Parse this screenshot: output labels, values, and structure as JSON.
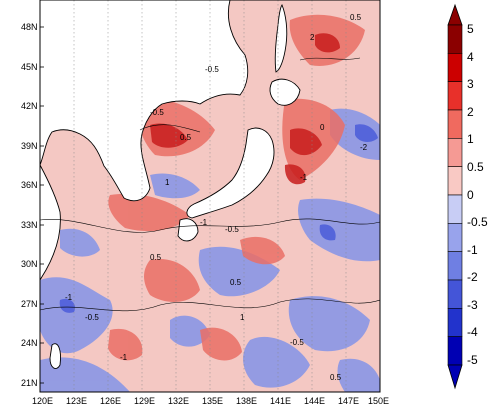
{
  "map": {
    "y_ticks": [
      "48N",
      "45N",
      "42N",
      "39N",
      "36N",
      "33N",
      "30N",
      "27N",
      "24N",
      "21N"
    ],
    "x_ticks": [
      "120E",
      "123E",
      "126E",
      "129E",
      "132E",
      "135E",
      "138E",
      "141E",
      "144E",
      "147E",
      "150E"
    ],
    "lon_range": [
      120,
      150
    ],
    "lat_range": [
      20,
      50
    ],
    "contour_labels": [
      "-0.5",
      "0.5",
      "1",
      "-1",
      "2",
      "-2",
      "0"
    ]
  },
  "colorbar": {
    "levels": [
      "5",
      "4",
      "3",
      "2",
      "1",
      "0.5",
      "0",
      "-0.5",
      "-1",
      "-2",
      "-3",
      "-4",
      "-5"
    ],
    "colors": [
      "#8b0000",
      "#cc0000",
      "#e8302a",
      "#f06a5f",
      "#f59a94",
      "#f9c9c4",
      "#ffffff",
      "#c8cdf5",
      "#98a3ec",
      "#6f7fe3",
      "#4455d8",
      "#2233cc",
      "#0000b3"
    ]
  },
  "colors": {
    "land": "#ffffff",
    "coast": "#000000",
    "positive": "#f08a84",
    "negative": "#7f8ee4"
  }
}
